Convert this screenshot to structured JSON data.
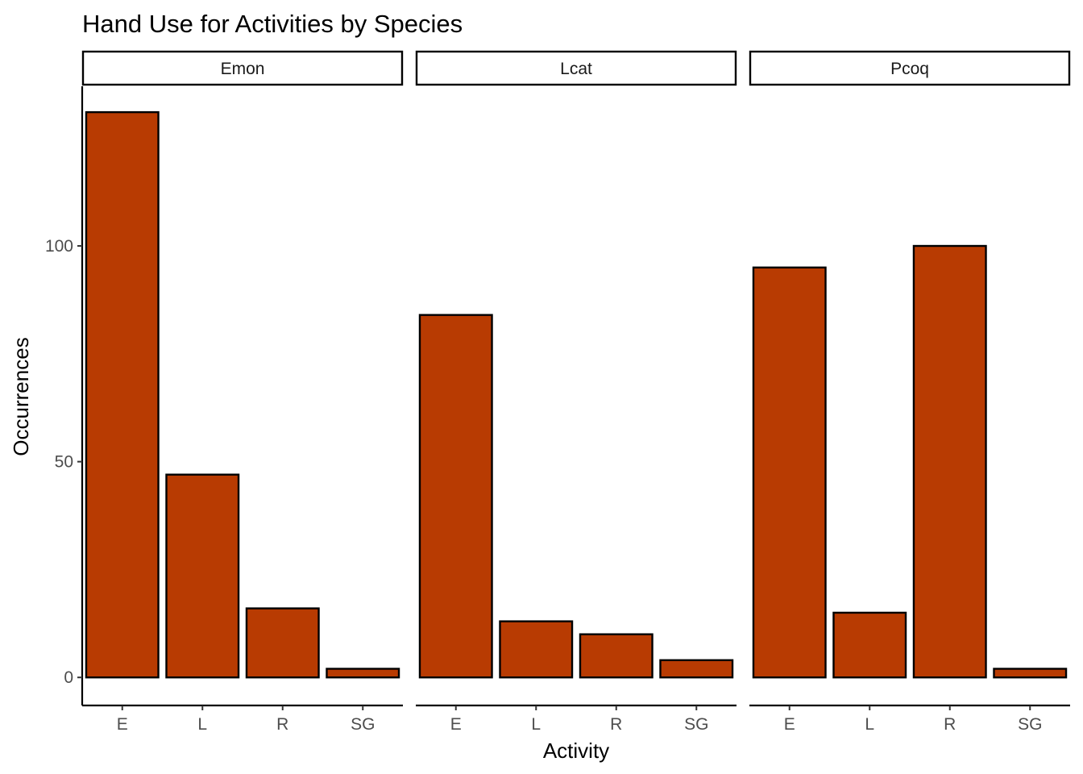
{
  "chart_data": {
    "type": "bar",
    "title": "Hand Use for Activities by Species",
    "xlabel": "Activity",
    "ylabel": "Occurrences",
    "ylim": [
      -6.5,
      137
    ],
    "yticks": [
      0,
      50,
      100
    ],
    "categories": [
      "E",
      "L",
      "R",
      "SG"
    ],
    "grid": false,
    "legend": "none",
    "facets": [
      {
        "name": "Emon",
        "values": [
          131,
          47,
          16,
          2
        ]
      },
      {
        "name": "Lcat",
        "values": [
          84,
          13,
          10,
          4
        ]
      },
      {
        "name": "Pcoq",
        "values": [
          95,
          15,
          100,
          2
        ]
      }
    ],
    "colors": {
      "bar_fill": "#B83B02",
      "bar_stroke": "#000000"
    }
  }
}
